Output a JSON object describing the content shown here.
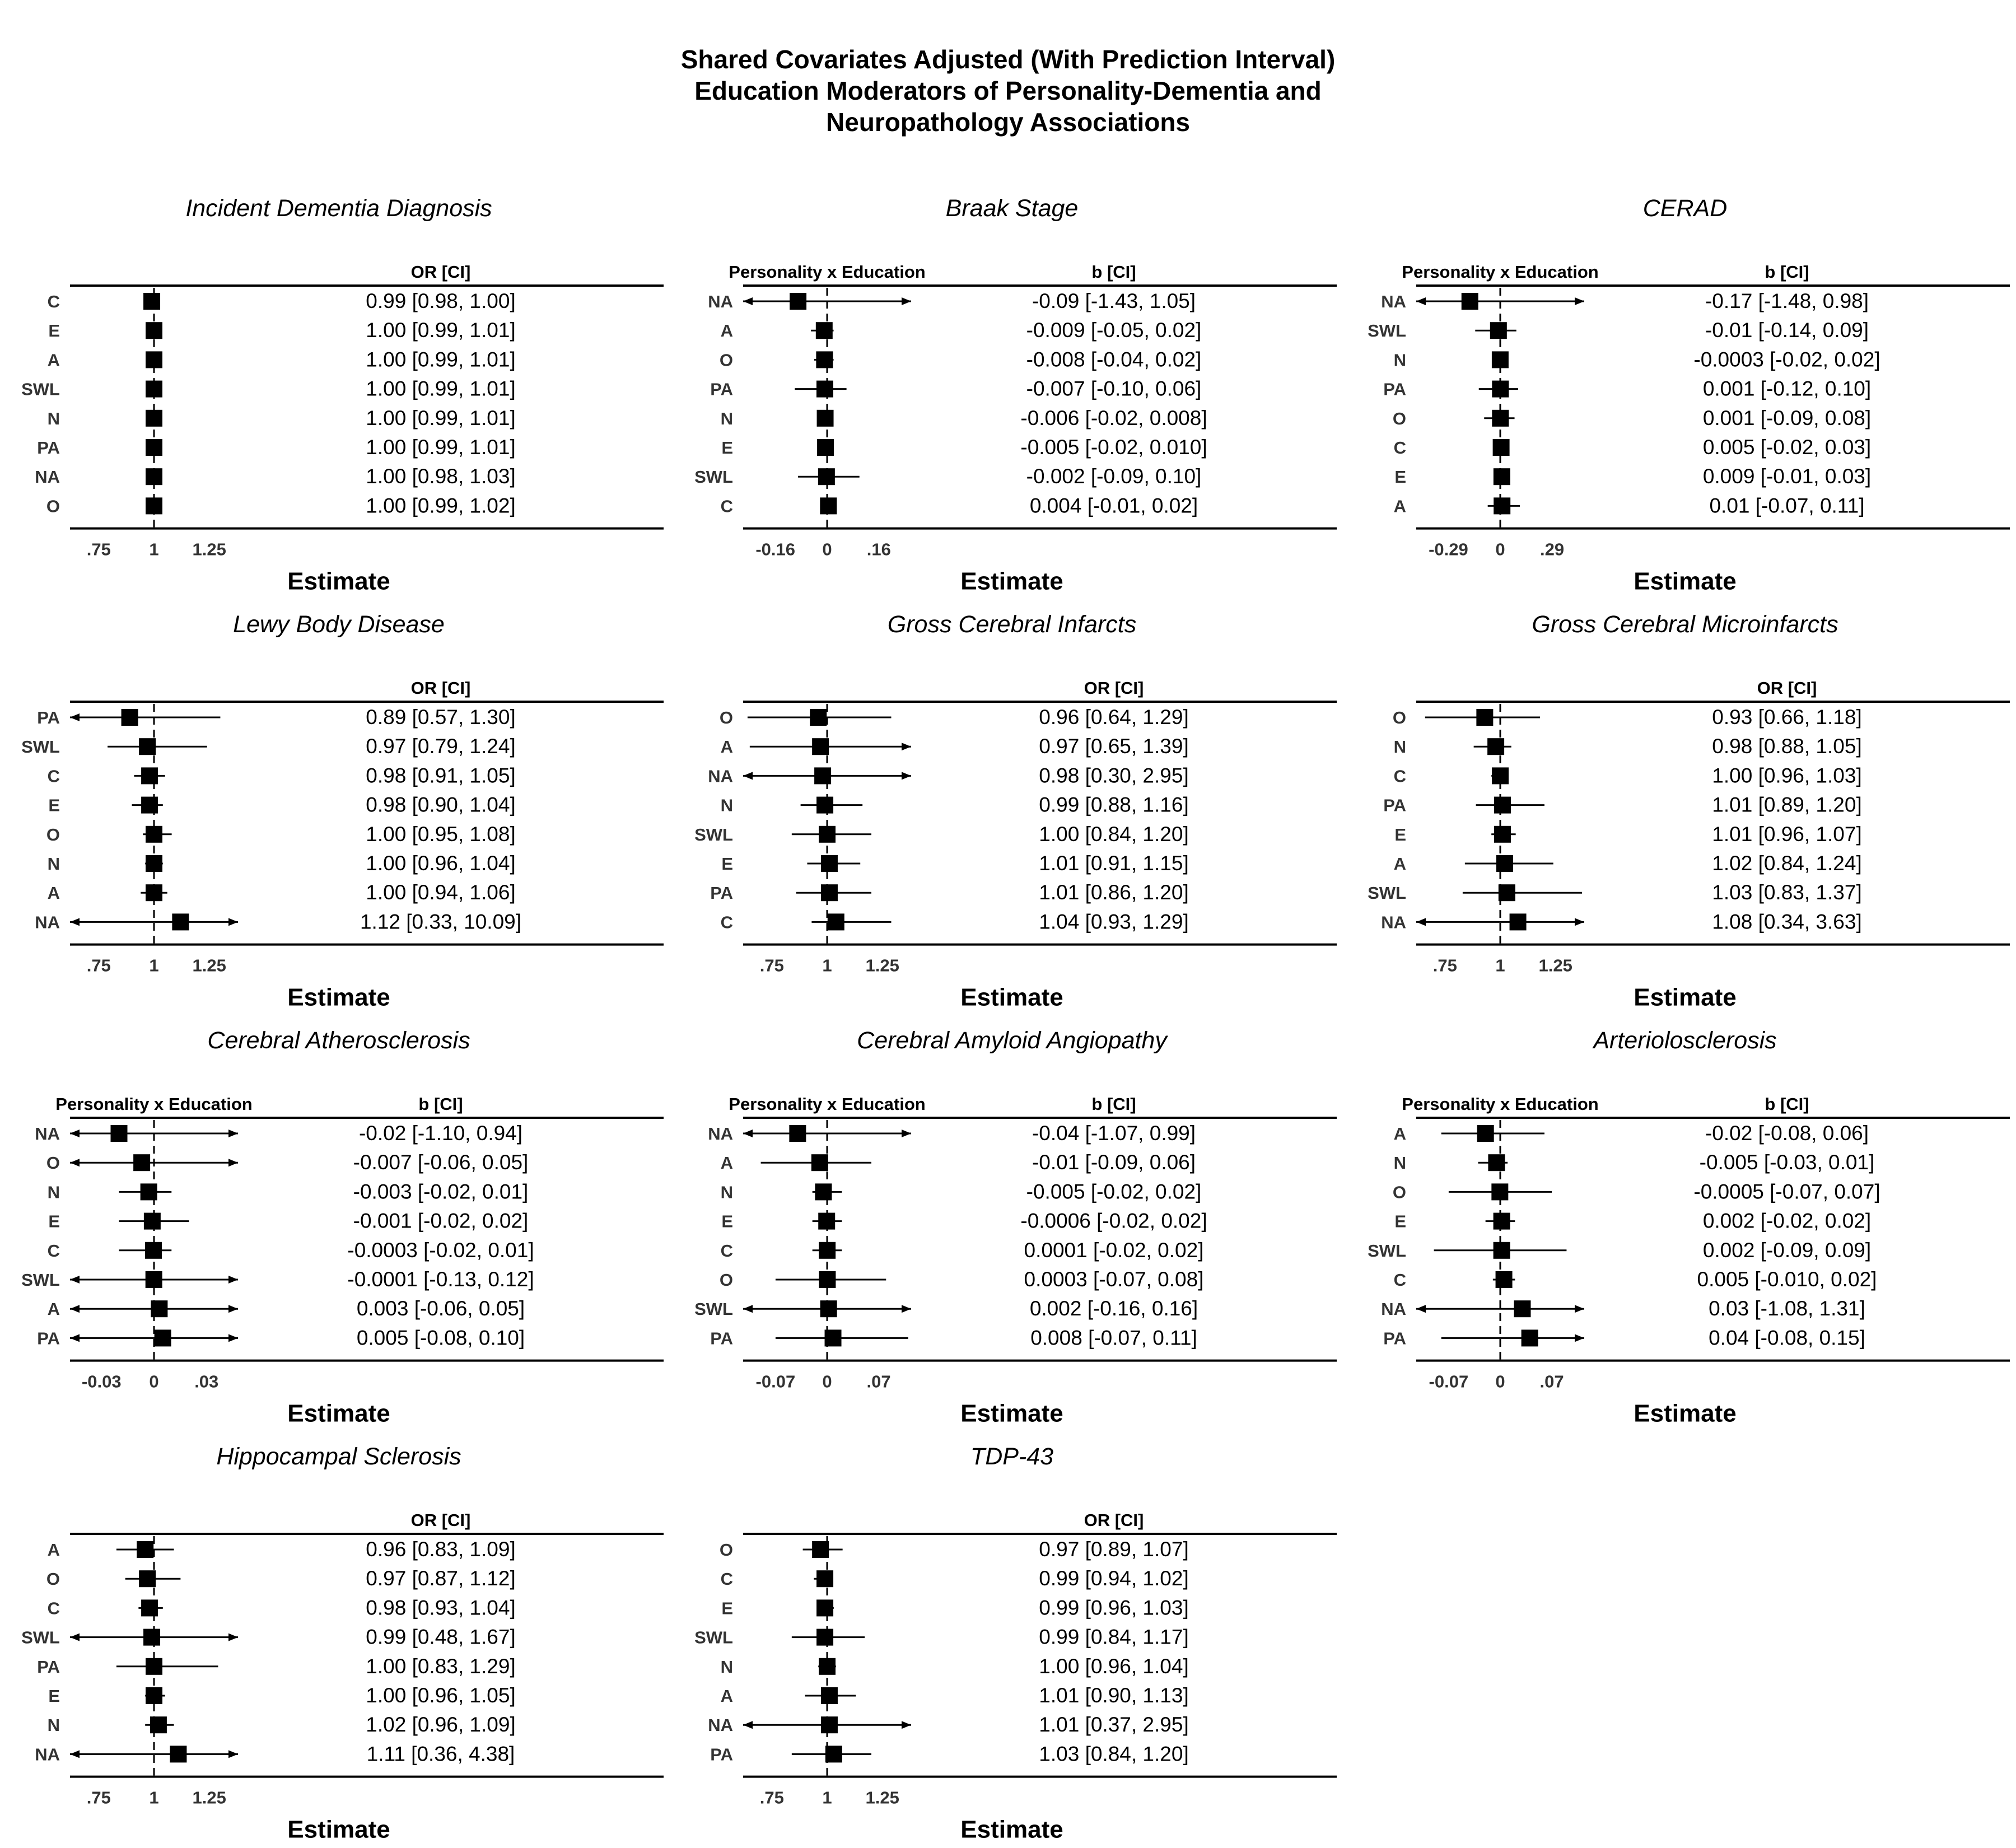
{
  "title_lines": [
    "Shared Covariates Adjusted (With Prediction Interval)",
    "Education Moderators of Personality-Dementia and",
    "Neuropathology Associations"
  ],
  "chart_data": [
    {
      "type": "forest",
      "title": "Incident Dementia Diagnosis",
      "xlabel": "Estimate",
      "column_header": "OR [CI]",
      "rows_header": "",
      "xlim": [
        0.62,
        1.38
      ],
      "reference": 1,
      "ticks": [
        0.75,
        1,
        1.25
      ],
      "tick_labels": [
        ".75",
        "1",
        "1.25"
      ],
      "rows": [
        {
          "label": "C",
          "est": 0.99,
          "lo": 0.98,
          "hi": 1.0,
          "ci_text": "0.99 [0.98, 1.00]"
        },
        {
          "label": "E",
          "est": 1.0,
          "lo": 0.99,
          "hi": 1.01,
          "ci_text": "1.00 [0.99, 1.01]"
        },
        {
          "label": "A",
          "est": 1.0,
          "lo": 0.99,
          "hi": 1.01,
          "ci_text": "1.00 [0.99, 1.01]"
        },
        {
          "label": "SWL",
          "est": 1.0,
          "lo": 0.99,
          "hi": 1.01,
          "ci_text": "1.00 [0.99, 1.01]"
        },
        {
          "label": "N",
          "est": 1.0,
          "lo": 0.99,
          "hi": 1.01,
          "ci_text": "1.00 [0.99, 1.01]"
        },
        {
          "label": "PA",
          "est": 1.0,
          "lo": 0.99,
          "hi": 1.01,
          "ci_text": "1.00 [0.99, 1.01]"
        },
        {
          "label": "NA",
          "est": 1.0,
          "lo": 0.98,
          "hi": 1.03,
          "ci_text": "1.00 [0.98, 1.03]"
        },
        {
          "label": "O",
          "est": 1.0,
          "lo": 0.99,
          "hi": 1.02,
          "ci_text": "1.00 [0.99, 1.02]"
        }
      ]
    },
    {
      "type": "forest",
      "title": "Braak Stage",
      "xlabel": "Estimate",
      "column_header": "b [CI]",
      "rows_header": "Personality x Education",
      "xlim": [
        -0.26,
        0.26
      ],
      "reference": 0,
      "ticks": [
        -0.16,
        0,
        0.16
      ],
      "tick_labels": [
        "-0.16",
        "0",
        ".16"
      ],
      "rows": [
        {
          "label": "NA",
          "est": -0.09,
          "lo": -1.43,
          "hi": 1.05,
          "ci_text": "-0.09 [-1.43, 1.05]"
        },
        {
          "label": "A",
          "est": -0.009,
          "lo": -0.05,
          "hi": 0.02,
          "ci_text": "-0.009 [-0.05, 0.02]"
        },
        {
          "label": "O",
          "est": -0.008,
          "lo": -0.04,
          "hi": 0.02,
          "ci_text": "-0.008 [-0.04, 0.02]"
        },
        {
          "label": "PA",
          "est": -0.007,
          "lo": -0.1,
          "hi": 0.06,
          "ci_text": "-0.007 [-0.10, 0.06]"
        },
        {
          "label": "N",
          "est": -0.006,
          "lo": -0.02,
          "hi": 0.008,
          "ci_text": "-0.006 [-0.02, 0.008]"
        },
        {
          "label": "E",
          "est": -0.005,
          "lo": -0.02,
          "hi": 0.01,
          "ci_text": "-0.005 [-0.02, 0.010]"
        },
        {
          "label": "SWL",
          "est": -0.002,
          "lo": -0.09,
          "hi": 0.1,
          "ci_text": "-0.002 [-0.09, 0.10]"
        },
        {
          "label": "C",
          "est": 0.004,
          "lo": -0.01,
          "hi": 0.02,
          "ci_text": "0.004 [-0.01, 0.02]"
        }
      ]
    },
    {
      "type": "forest",
      "title": "CERAD",
      "xlabel": "Estimate",
      "column_header": "b [CI]",
      "rows_header": "Personality x Education",
      "xlim": [
        -0.47,
        0.47
      ],
      "reference": 0,
      "ticks": [
        -0.29,
        0,
        0.29
      ],
      "tick_labels": [
        "-0.29",
        "0",
        ".29"
      ],
      "rows": [
        {
          "label": "NA",
          "est": -0.17,
          "lo": -1.48,
          "hi": 0.98,
          "ci_text": "-0.17 [-1.48, 0.98]"
        },
        {
          "label": "SWL",
          "est": -0.01,
          "lo": -0.14,
          "hi": 0.09,
          "ci_text": "-0.01 [-0.14, 0.09]"
        },
        {
          "label": "N",
          "est": -0.0003,
          "lo": -0.02,
          "hi": 0.02,
          "ci_text": "-0.0003 [-0.02, 0.02]"
        },
        {
          "label": "PA",
          "est": 0.001,
          "lo": -0.12,
          "hi": 0.1,
          "ci_text": "0.001 [-0.12, 0.10]"
        },
        {
          "label": "O",
          "est": 0.001,
          "lo": -0.09,
          "hi": 0.08,
          "ci_text": "0.001 [-0.09, 0.08]"
        },
        {
          "label": "C",
          "est": 0.005,
          "lo": -0.02,
          "hi": 0.03,
          "ci_text": "0.005 [-0.02, 0.03]"
        },
        {
          "label": "E",
          "est": 0.009,
          "lo": -0.01,
          "hi": 0.03,
          "ci_text": "0.009 [-0.01, 0.03]"
        },
        {
          "label": "A",
          "est": 0.01,
          "lo": -0.07,
          "hi": 0.11,
          "ci_text": "0.01 [-0.07, 0.11]"
        }
      ]
    },
    {
      "type": "forest",
      "title": "Lewy Body Disease",
      "xlabel": "Estimate",
      "column_header": "OR [CI]",
      "rows_header": "",
      "xlim": [
        0.62,
        1.38
      ],
      "reference": 1,
      "ticks": [
        0.75,
        1,
        1.25
      ],
      "tick_labels": [
        ".75",
        "1",
        "1.25"
      ],
      "rows": [
        {
          "label": "PA",
          "est": 0.89,
          "lo": 0.57,
          "hi": 1.3,
          "ci_text": "0.89 [0.57, 1.30]"
        },
        {
          "label": "SWL",
          "est": 0.97,
          "lo": 0.79,
          "hi": 1.24,
          "ci_text": "0.97 [0.79, 1.24]"
        },
        {
          "label": "C",
          "est": 0.98,
          "lo": 0.91,
          "hi": 1.05,
          "ci_text": "0.98 [0.91, 1.05]"
        },
        {
          "label": "E",
          "est": 0.98,
          "lo": 0.9,
          "hi": 1.04,
          "ci_text": "0.98 [0.90, 1.04]"
        },
        {
          "label": "O",
          "est": 1.0,
          "lo": 0.95,
          "hi": 1.08,
          "ci_text": "1.00 [0.95, 1.08]"
        },
        {
          "label": "N",
          "est": 1.0,
          "lo": 0.96,
          "hi": 1.04,
          "ci_text": "1.00 [0.96, 1.04]"
        },
        {
          "label": "A",
          "est": 1.0,
          "lo": 0.94,
          "hi": 1.06,
          "ci_text": "1.00 [0.94, 1.06]"
        },
        {
          "label": "NA",
          "est": 1.12,
          "lo": 0.33,
          "hi": 10.09,
          "ci_text": "1.12 [0.33, 10.09]"
        }
      ]
    },
    {
      "type": "forest",
      "title": "Gross Cerebral Infarcts",
      "xlabel": "Estimate",
      "column_header": "OR [CI]",
      "rows_header": "",
      "xlim": [
        0.62,
        1.38
      ],
      "reference": 1,
      "ticks": [
        0.75,
        1,
        1.25
      ],
      "tick_labels": [
        ".75",
        "1",
        "1.25"
      ],
      "rows": [
        {
          "label": "O",
          "est": 0.96,
          "lo": 0.64,
          "hi": 1.29,
          "ci_text": "0.96 [0.64, 1.29]"
        },
        {
          "label": "A",
          "est": 0.97,
          "lo": 0.65,
          "hi": 1.39,
          "ci_text": "0.97 [0.65, 1.39]"
        },
        {
          "label": "NA",
          "est": 0.98,
          "lo": 0.3,
          "hi": 2.95,
          "ci_text": "0.98 [0.30, 2.95]"
        },
        {
          "label": "N",
          "est": 0.99,
          "lo": 0.88,
          "hi": 1.16,
          "ci_text": "0.99 [0.88, 1.16]"
        },
        {
          "label": "SWL",
          "est": 1.0,
          "lo": 0.84,
          "hi": 1.2,
          "ci_text": "1.00 [0.84, 1.20]"
        },
        {
          "label": "E",
          "est": 1.01,
          "lo": 0.91,
          "hi": 1.15,
          "ci_text": "1.01 [0.91, 1.15]"
        },
        {
          "label": "PA",
          "est": 1.01,
          "lo": 0.86,
          "hi": 1.2,
          "ci_text": "1.01 [0.86, 1.20]"
        },
        {
          "label": "C",
          "est": 1.04,
          "lo": 0.93,
          "hi": 1.29,
          "ci_text": "1.04 [0.93, 1.29]"
        }
      ]
    },
    {
      "type": "forest",
      "title": "Gross Cerebral Microinfarcts",
      "xlabel": "Estimate",
      "column_header": "OR [CI]",
      "rows_header": "",
      "xlim": [
        0.62,
        1.38
      ],
      "reference": 1,
      "ticks": [
        0.75,
        1,
        1.25
      ],
      "tick_labels": [
        ".75",
        "1",
        "1.25"
      ],
      "rows": [
        {
          "label": "O",
          "est": 0.93,
          "lo": 0.66,
          "hi": 1.18,
          "ci_text": "0.93 [0.66, 1.18]"
        },
        {
          "label": "N",
          "est": 0.98,
          "lo": 0.88,
          "hi": 1.05,
          "ci_text": "0.98 [0.88, 1.05]"
        },
        {
          "label": "C",
          "est": 1.0,
          "lo": 0.96,
          "hi": 1.03,
          "ci_text": "1.00 [0.96, 1.03]"
        },
        {
          "label": "PA",
          "est": 1.01,
          "lo": 0.89,
          "hi": 1.2,
          "ci_text": "1.01 [0.89, 1.20]"
        },
        {
          "label": "E",
          "est": 1.01,
          "lo": 0.96,
          "hi": 1.07,
          "ci_text": "1.01 [0.96, 1.07]"
        },
        {
          "label": "A",
          "est": 1.02,
          "lo": 0.84,
          "hi": 1.24,
          "ci_text": "1.02 [0.84, 1.24]"
        },
        {
          "label": "SWL",
          "est": 1.03,
          "lo": 0.83,
          "hi": 1.37,
          "ci_text": "1.03 [0.83, 1.37]"
        },
        {
          "label": "NA",
          "est": 1.08,
          "lo": 0.34,
          "hi": 3.63,
          "ci_text": "1.08 [0.34, 3.63]"
        }
      ]
    },
    {
      "type": "forest",
      "title": "Cerebral Atherosclerosis",
      "xlabel": "Estimate",
      "column_header": "b [CI]",
      "rows_header": "Personality x Education",
      "xlim": [
        -0.048,
        0.048
      ],
      "reference": 0,
      "ticks": [
        -0.03,
        0,
        0.03
      ],
      "tick_labels": [
        "-0.03",
        "0",
        ".03"
      ],
      "rows": [
        {
          "label": "NA",
          "est": -0.02,
          "lo": -1.1,
          "hi": 0.94,
          "ci_text": "-0.02 [-1.10, 0.94]"
        },
        {
          "label": "O",
          "est": -0.007,
          "lo": -0.06,
          "hi": 0.05,
          "ci_text": "-0.007 [-0.06, 0.05]"
        },
        {
          "label": "N",
          "est": -0.003,
          "lo": -0.02,
          "hi": 0.01,
          "ci_text": "-0.003 [-0.02, 0.01]"
        },
        {
          "label": "E",
          "est": -0.001,
          "lo": -0.02,
          "hi": 0.02,
          "ci_text": "-0.001 [-0.02, 0.02]"
        },
        {
          "label": "C",
          "est": -0.0003,
          "lo": -0.02,
          "hi": 0.01,
          "ci_text": "-0.0003 [-0.02, 0.01]"
        },
        {
          "label": "SWL",
          "est": -0.0001,
          "lo": -0.13,
          "hi": 0.12,
          "ci_text": "-0.0001 [-0.13, 0.12]"
        },
        {
          "label": "A",
          "est": 0.003,
          "lo": -0.06,
          "hi": 0.05,
          "ci_text": "0.003 [-0.06, 0.05]"
        },
        {
          "label": "PA",
          "est": 0.005,
          "lo": -0.08,
          "hi": 0.1,
          "ci_text": "0.005 [-0.08, 0.10]"
        }
      ]
    },
    {
      "type": "forest",
      "title": "Cerebral Amyloid Angiopathy",
      "xlabel": "Estimate",
      "column_header": "b [CI]",
      "rows_header": "Personality x Education",
      "xlim": [
        -0.114,
        0.114
      ],
      "reference": 0,
      "ticks": [
        -0.07,
        0,
        0.07
      ],
      "tick_labels": [
        "-0.07",
        "0",
        ".07"
      ],
      "rows": [
        {
          "label": "NA",
          "est": -0.04,
          "lo": -1.07,
          "hi": 0.99,
          "ci_text": "-0.04 [-1.07, 0.99]"
        },
        {
          "label": "A",
          "est": -0.01,
          "lo": -0.09,
          "hi": 0.06,
          "ci_text": "-0.01 [-0.09, 0.06]"
        },
        {
          "label": "N",
          "est": -0.005,
          "lo": -0.02,
          "hi": 0.02,
          "ci_text": "-0.005 [-0.02, 0.02]"
        },
        {
          "label": "E",
          "est": -0.0006,
          "lo": -0.02,
          "hi": 0.02,
          "ci_text": "-0.0006 [-0.02, 0.02]"
        },
        {
          "label": "C",
          "est": 0.0001,
          "lo": -0.02,
          "hi": 0.02,
          "ci_text": "0.0001 [-0.02, 0.02]"
        },
        {
          "label": "O",
          "est": 0.0003,
          "lo": -0.07,
          "hi": 0.08,
          "ci_text": "0.0003 [-0.07, 0.08]"
        },
        {
          "label": "SWL",
          "est": 0.002,
          "lo": -0.16,
          "hi": 0.16,
          "ci_text": "0.002 [-0.16, 0.16]"
        },
        {
          "label": "PA",
          "est": 0.008,
          "lo": -0.07,
          "hi": 0.11,
          "ci_text": "0.008 [-0.07, 0.11]"
        }
      ]
    },
    {
      "type": "forest",
      "title": "Arteriolosclerosis",
      "xlabel": "Estimate",
      "column_header": "b [CI]",
      "rows_header": "Personality x Education",
      "xlim": [
        -0.114,
        0.114
      ],
      "reference": 0,
      "ticks": [
        -0.07,
        0,
        0.07
      ],
      "tick_labels": [
        "-0.07",
        "0",
        ".07"
      ],
      "rows": [
        {
          "label": "A",
          "est": -0.02,
          "lo": -0.08,
          "hi": 0.06,
          "ci_text": "-0.02 [-0.08, 0.06]"
        },
        {
          "label": "N",
          "est": -0.005,
          "lo": -0.03,
          "hi": 0.01,
          "ci_text": "-0.005 [-0.03, 0.01]"
        },
        {
          "label": "O",
          "est": -0.0005,
          "lo": -0.07,
          "hi": 0.07,
          "ci_text": "-0.0005 [-0.07, 0.07]"
        },
        {
          "label": "E",
          "est": 0.002,
          "lo": -0.02,
          "hi": 0.02,
          "ci_text": "0.002 [-0.02, 0.02]"
        },
        {
          "label": "SWL",
          "est": 0.002,
          "lo": -0.09,
          "hi": 0.09,
          "ci_text": "0.002 [-0.09, 0.09]"
        },
        {
          "label": "C",
          "est": 0.005,
          "lo": -0.01,
          "hi": 0.02,
          "ci_text": "0.005 [-0.010, 0.02]"
        },
        {
          "label": "NA",
          "est": 0.03,
          "lo": -1.08,
          "hi": 1.31,
          "ci_text": "0.03 [-1.08, 1.31]"
        },
        {
          "label": "PA",
          "est": 0.04,
          "lo": -0.08,
          "hi": 0.15,
          "ci_text": "0.04 [-0.08, 0.15]"
        }
      ]
    },
    {
      "type": "forest",
      "title": "Hippocampal Sclerosis",
      "xlabel": "Estimate",
      "column_header": "OR [CI]",
      "rows_header": "",
      "xlim": [
        0.62,
        1.38
      ],
      "reference": 1,
      "ticks": [
        0.75,
        1,
        1.25
      ],
      "tick_labels": [
        ".75",
        "1",
        "1.25"
      ],
      "rows": [
        {
          "label": "A",
          "est": 0.96,
          "lo": 0.83,
          "hi": 1.09,
          "ci_text": "0.96 [0.83, 1.09]"
        },
        {
          "label": "O",
          "est": 0.97,
          "lo": 0.87,
          "hi": 1.12,
          "ci_text": "0.97 [0.87, 1.12]"
        },
        {
          "label": "C",
          "est": 0.98,
          "lo": 0.93,
          "hi": 1.04,
          "ci_text": "0.98 [0.93, 1.04]"
        },
        {
          "label": "SWL",
          "est": 0.99,
          "lo": 0.48,
          "hi": 1.67,
          "ci_text": "0.99 [0.48, 1.67]"
        },
        {
          "label": "PA",
          "est": 1.0,
          "lo": 0.83,
          "hi": 1.29,
          "ci_text": "1.00 [0.83, 1.29]"
        },
        {
          "label": "E",
          "est": 1.0,
          "lo": 0.96,
          "hi": 1.05,
          "ci_text": "1.00 [0.96, 1.05]"
        },
        {
          "label": "N",
          "est": 1.02,
          "lo": 0.96,
          "hi": 1.09,
          "ci_text": "1.02 [0.96, 1.09]"
        },
        {
          "label": "NA",
          "est": 1.11,
          "lo": 0.36,
          "hi": 4.38,
          "ci_text": "1.11 [0.36, 4.38]"
        }
      ]
    },
    {
      "type": "forest",
      "title": "TDP-43",
      "xlabel": "Estimate",
      "column_header": "OR [CI]",
      "rows_header": "",
      "xlim": [
        0.62,
        1.38
      ],
      "reference": 1,
      "ticks": [
        0.75,
        1,
        1.25
      ],
      "tick_labels": [
        ".75",
        "1",
        "1.25"
      ],
      "rows": [
        {
          "label": "O",
          "est": 0.97,
          "lo": 0.89,
          "hi": 1.07,
          "ci_text": "0.97 [0.89, 1.07]"
        },
        {
          "label": "C",
          "est": 0.99,
          "lo": 0.94,
          "hi": 1.02,
          "ci_text": "0.99 [0.94, 1.02]"
        },
        {
          "label": "E",
          "est": 0.99,
          "lo": 0.96,
          "hi": 1.03,
          "ci_text": "0.99 [0.96, 1.03]"
        },
        {
          "label": "SWL",
          "est": 0.99,
          "lo": 0.84,
          "hi": 1.17,
          "ci_text": "0.99 [0.84, 1.17]"
        },
        {
          "label": "N",
          "est": 1.0,
          "lo": 0.96,
          "hi": 1.04,
          "ci_text": "1.00 [0.96, 1.04]"
        },
        {
          "label": "A",
          "est": 1.01,
          "lo": 0.9,
          "hi": 1.13,
          "ci_text": "1.01 [0.90, 1.13]"
        },
        {
          "label": "NA",
          "est": 1.01,
          "lo": 0.37,
          "hi": 2.95,
          "ci_text": "1.01 [0.37, 2.95]"
        },
        {
          "label": "PA",
          "est": 1.03,
          "lo": 0.84,
          "hi": 1.2,
          "ci_text": "1.03 [0.84, 1.20]"
        }
      ]
    }
  ]
}
